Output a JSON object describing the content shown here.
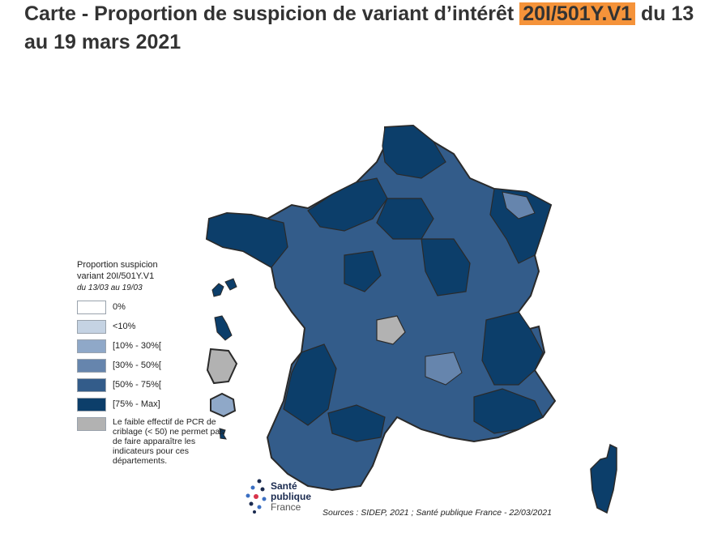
{
  "title": {
    "prefix": "Carte - Proportion de suspicion de variant d’intérêt ",
    "highlight": "20I/501Y.V1",
    "suffix": " du 13 au 19 mars 2021"
  },
  "legend": {
    "title_line1": "Proportion suspicion",
    "title_line2": "variant 20I/501Y.V1",
    "date_range": "du 13/03 au 19/03",
    "items": [
      {
        "label": "0%",
        "color": "#ffffff"
      },
      {
        "label": "<10%",
        "color": "#c5d3e3"
      },
      {
        "label": "[10% - 30%[",
        "color": "#8fa8c8"
      },
      {
        "label": "[30% - 50%[",
        "color": "#6685ad"
      },
      {
        "label": "[50% - 75%[",
        "color": "#335c8a"
      },
      {
        "label": "[75% - Max]",
        "color": "#0c3e6a"
      }
    ],
    "na_label": "Le faible effectif de PCR de criblage (< 50) ne permet pas de faire apparaître les indicateurs pour ces départements.",
    "na_color": "#b2b2b2"
  },
  "logo": {
    "line1": "Santé",
    "line2": "publique",
    "line3": "France"
  },
  "source": "Sources : SIDEP, 2021 ; Santé publique France - 22/03/2021",
  "colors": {
    "highlight": "#f5933a",
    "dark": "#0c3e6a",
    "mid": "#335c8a",
    "light": "#6685ad",
    "gray": "#b2b2b2"
  }
}
